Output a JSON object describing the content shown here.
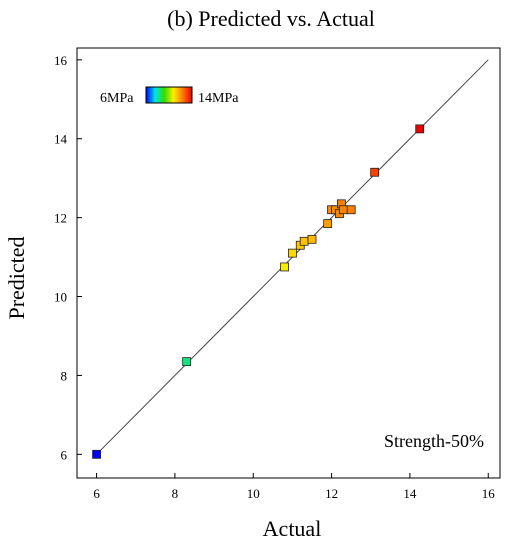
{
  "chart_data": {
    "type": "scatter",
    "title": "(b) Predicted vs. Actual",
    "xlabel": "Actual",
    "ylabel": "Predicted",
    "xlim": [
      5.5,
      16.3
    ],
    "ylim": [
      5.4,
      16.3
    ],
    "xticks": [
      "6",
      "8",
      "10",
      "12",
      "14",
      "16"
    ],
    "yticks": [
      "6",
      "8",
      "10",
      "12",
      "14",
      "16"
    ],
    "xtick_values": [
      6,
      8,
      10,
      12,
      14,
      16
    ],
    "ytick_values": [
      6,
      8,
      10,
      12,
      14,
      16
    ],
    "reference_line": {
      "from": [
        6,
        6
      ],
      "to": [
        16,
        16
      ]
    },
    "annotation": "Strength-50%",
    "legend": {
      "type": "colorbar",
      "min_label": "6MPa",
      "max_label": "14MPa",
      "placement": "top-left"
    },
    "color_scale": {
      "min": 6,
      "max": 14,
      "stops": [
        "#0000ff",
        "#00e5e5",
        "#33dd00",
        "#ffee00",
        "#ff7700",
        "#ee0000"
      ]
    },
    "points": [
      {
        "x": 6.0,
        "y": 6.0,
        "c": 6.0
      },
      {
        "x": 8.3,
        "y": 8.35,
        "c": 8.3
      },
      {
        "x": 10.8,
        "y": 10.75,
        "c": 10.75
      },
      {
        "x": 11.0,
        "y": 11.1,
        "c": 11.1
      },
      {
        "x": 11.2,
        "y": 11.3,
        "c": 11.3
      },
      {
        "x": 11.3,
        "y": 11.4,
        "c": 11.4
      },
      {
        "x": 11.5,
        "y": 11.45,
        "c": 11.5
      },
      {
        "x": 11.9,
        "y": 11.85,
        "c": 11.85
      },
      {
        "x": 12.0,
        "y": 12.2,
        "c": 12.2
      },
      {
        "x": 12.1,
        "y": 12.2,
        "c": 12.2
      },
      {
        "x": 12.2,
        "y": 12.1,
        "c": 12.2
      },
      {
        "x": 12.25,
        "y": 12.35,
        "c": 12.3
      },
      {
        "x": 12.3,
        "y": 12.2,
        "c": 12.25
      },
      {
        "x": 12.5,
        "y": 12.2,
        "c": 12.3
      },
      {
        "x": 13.1,
        "y": 13.15,
        "c": 13.1
      },
      {
        "x": 14.25,
        "y": 14.25,
        "c": 14.25
      }
    ]
  }
}
